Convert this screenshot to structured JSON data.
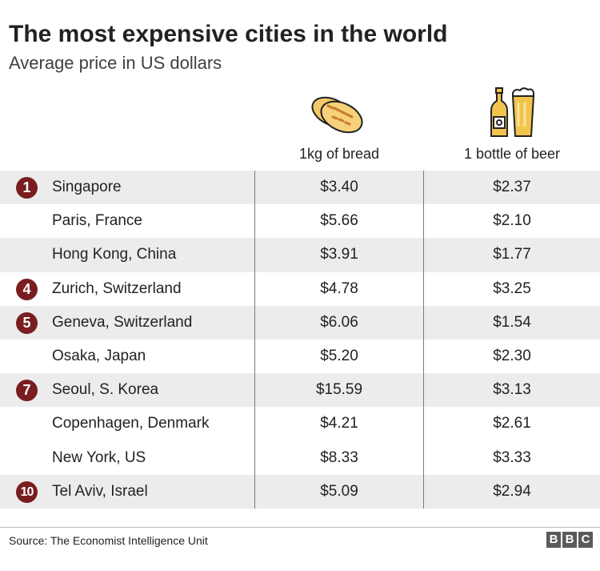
{
  "title": "The most expensive cities in the world",
  "subtitle": "Average price in US dollars",
  "icons": {
    "bread": "bread-icon",
    "beer": "beer-bottle-and-glass-icon"
  },
  "colors": {
    "rank_badge": "#7a1d20",
    "row_shade": "#ececec",
    "bread_fill": "#f5c86a",
    "beer_fill": "#f2c44e"
  },
  "chart_data": {
    "type": "table",
    "columns": [
      "1kg of bread",
      "1 bottle of beer"
    ],
    "rows": [
      {
        "rank": "1",
        "city": "Singapore",
        "bread": "$3.40",
        "beer": "$2.37"
      },
      {
        "rank": "",
        "city": "Paris, France",
        "bread": "$5.66",
        "beer": "$2.10"
      },
      {
        "rank": "",
        "city": "Hong Kong, China",
        "bread": "$3.91",
        "beer": "$1.77"
      },
      {
        "rank": "4",
        "city": "Zurich, Switzerland",
        "bread": "$4.78",
        "beer": "$3.25"
      },
      {
        "rank": "5",
        "city": "Geneva, Switzerland",
        "bread": "$6.06",
        "beer": "$1.54"
      },
      {
        "rank": "",
        "city": "Osaka, Japan",
        "bread": "$5.20",
        "beer": "$2.30"
      },
      {
        "rank": "7",
        "city": "Seoul, S. Korea",
        "bread": "$15.59",
        "beer": "$3.13"
      },
      {
        "rank": "",
        "city": "Copenhagen, Denmark",
        "bread": "$4.21",
        "beer": "$2.61"
      },
      {
        "rank": "",
        "city": "New York, US",
        "bread": "$8.33",
        "beer": "$3.33"
      },
      {
        "rank": "10",
        "city": "Tel Aviv, Israel",
        "bread": "$5.09",
        "beer": "$2.94"
      }
    ]
  },
  "footer": {
    "source": "Source: The Economist Intelligence Unit",
    "logo_letters": [
      "B",
      "B",
      "C"
    ]
  }
}
